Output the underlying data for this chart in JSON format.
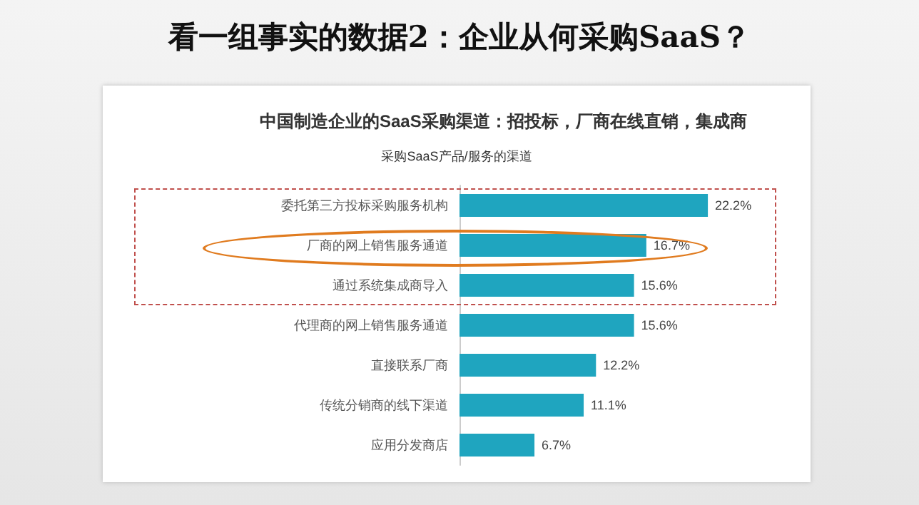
{
  "chart_data": {
    "type": "bar",
    "orientation": "horizontal",
    "title": "看一组事实的数据2：企业从何采购SaaS？",
    "subtitle": "中国制造企业的SaaS采购渠道：招投标，厂商在线直销，集成商",
    "annotations": [
      "采购SaaS产品/服务的渠道"
    ],
    "categories": [
      "委托第三方投标采购服务机构",
      "厂商的网上销售服务通道",
      "通过系统集成商导入",
      "代理商的网上销售服务通道",
      "直接联系厂商",
      "传统分销商的线下渠道",
      "应用分发商店"
    ],
    "values": [
      22.2,
      16.7,
      15.6,
      15.6,
      12.2,
      11.1,
      6.7
    ],
    "value_labels": [
      "22.2%",
      "16.7%",
      "15.6%",
      "15.6%",
      "12.2%",
      "11.1%",
      "6.7%"
    ],
    "color": "#1fa5bf"
  }
}
